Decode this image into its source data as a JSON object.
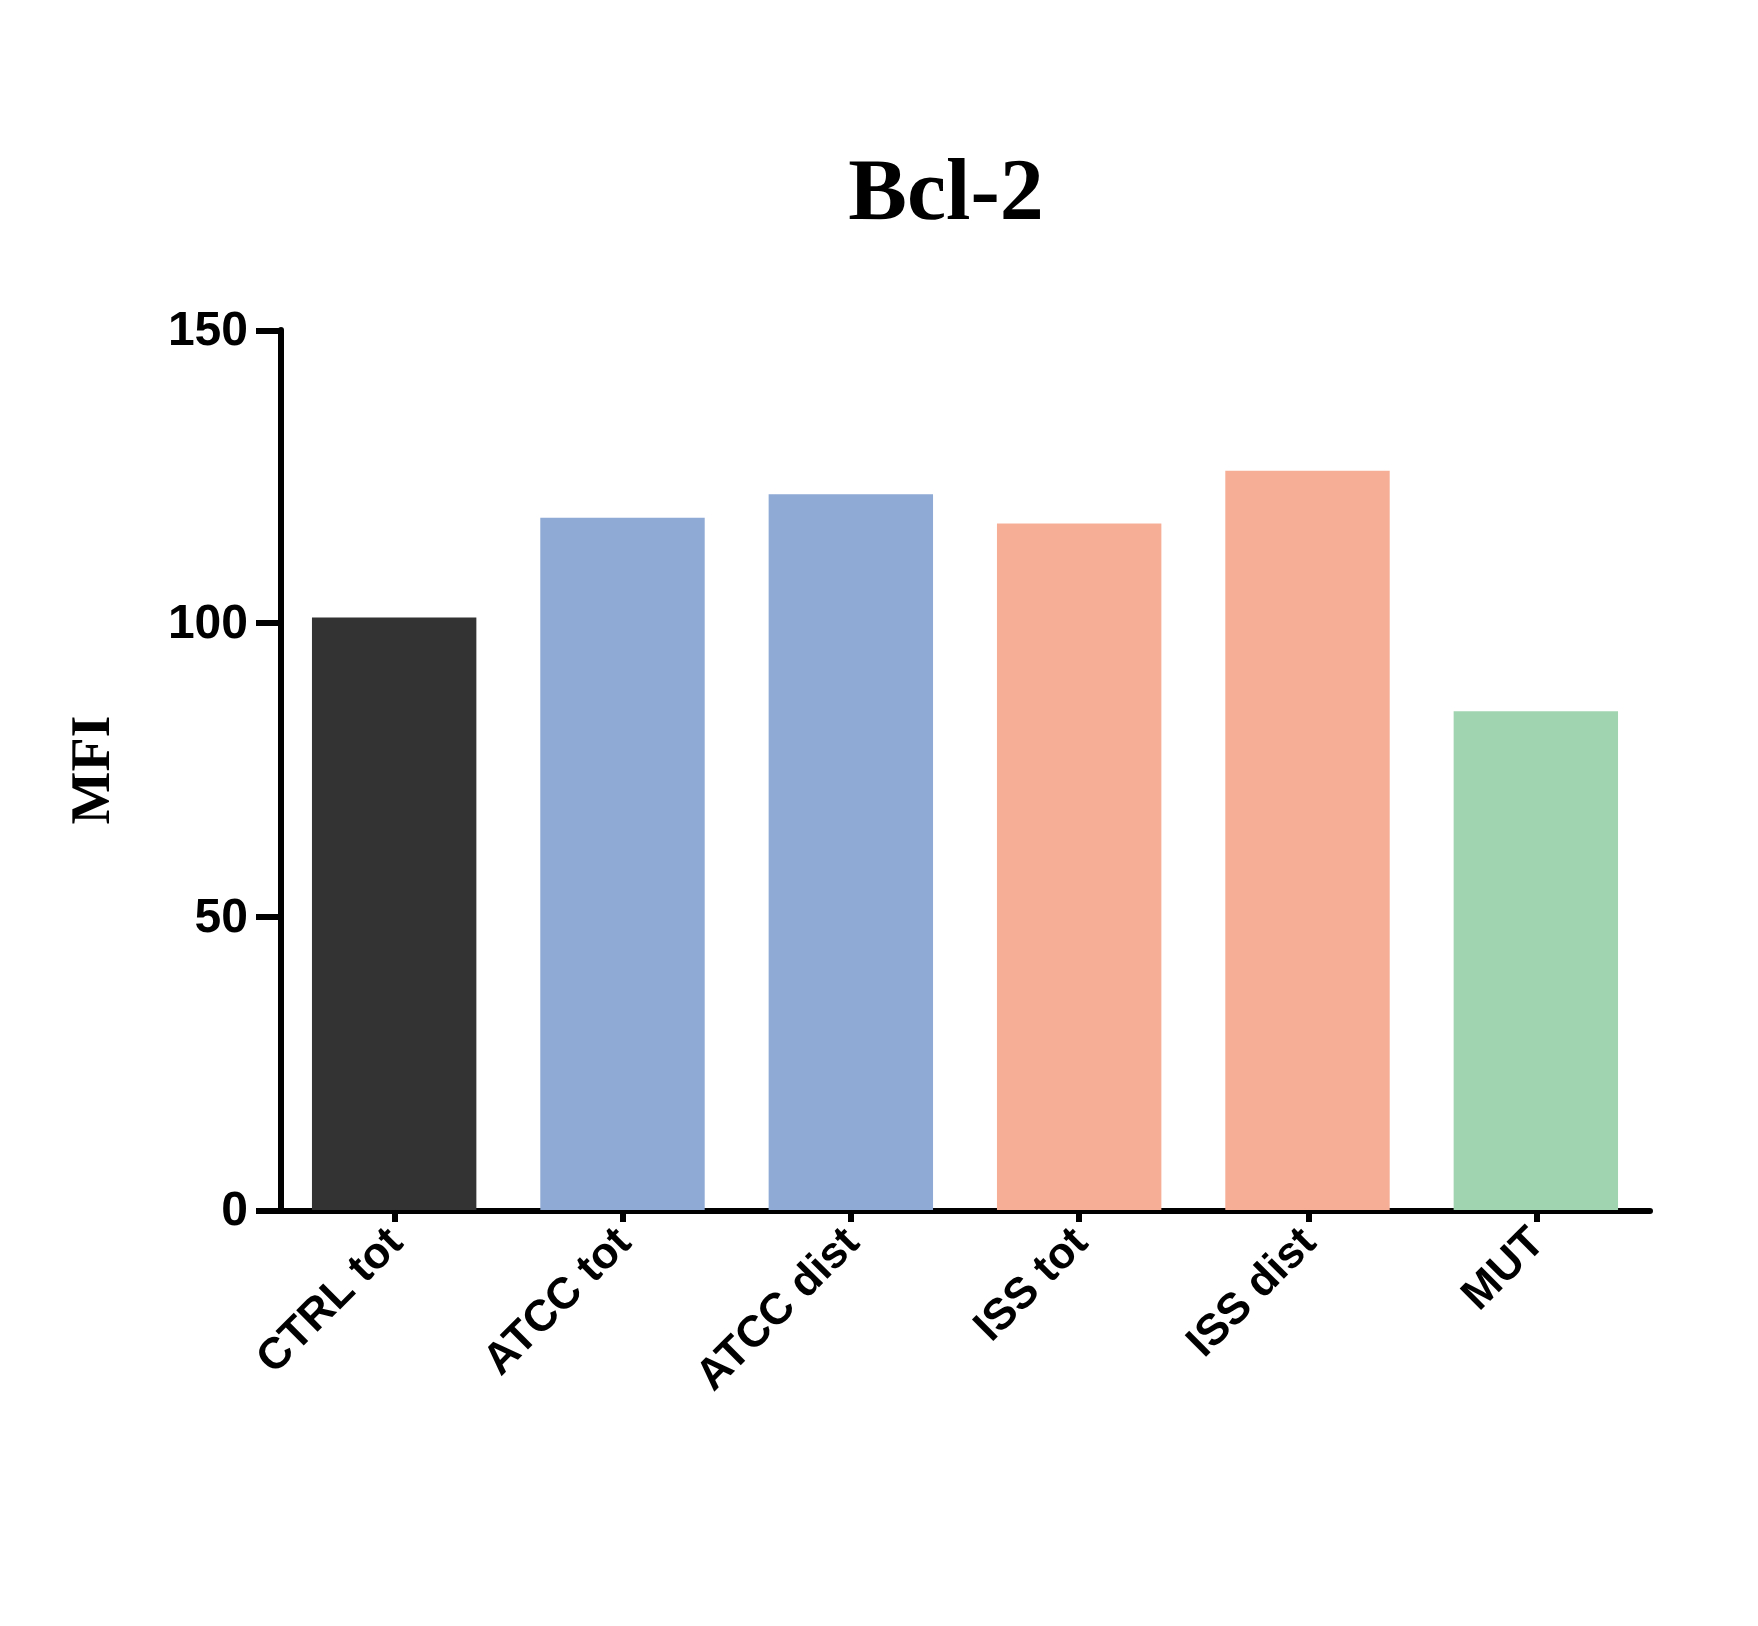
{
  "chart_data": {
    "type": "bar",
    "title": "Bcl-2",
    "ylabel": "MFI",
    "categories": [
      "CTRL tot",
      "ATCC tot",
      "ATCC dist",
      "ISS tot",
      "ISS dist",
      "MUT"
    ],
    "values": [
      101,
      118,
      122,
      117,
      126,
      85
    ],
    "colors": [
      "#333333",
      "#8eaad5",
      "#8eaad5",
      "#f7ae96",
      "#f7ae96",
      "#a0d4b0"
    ],
    "ylim": [
      0,
      150
    ],
    "yticks": [
      0,
      50,
      100,
      150
    ],
    "grid": false
  }
}
